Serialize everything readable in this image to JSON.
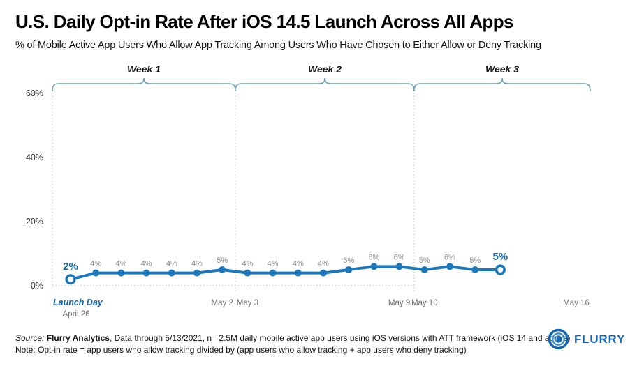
{
  "header": {
    "title": "U.S. Daily Opt-in Rate After iOS 14.5 Launch Across All Apps",
    "subtitle": "% of Mobile Active App Users Who Allow App Tracking Among Users Who Have Chosen to Either Allow or Deny Tracking"
  },
  "chart_data": {
    "type": "line",
    "title": "U.S. Daily Opt-in Rate After iOS 14.5 Launch Across All Apps",
    "values": [
      2,
      4,
      4,
      4,
      4,
      4,
      5,
      4,
      4,
      4,
      4,
      5,
      6,
      6,
      5,
      6,
      5,
      5
    ],
    "point_labels": [
      "2%",
      "4%",
      "4%",
      "4%",
      "4%",
      "4%",
      "5%",
      "4%",
      "4%",
      "4%",
      "4%",
      "5%",
      "6%",
      "6%",
      "5%",
      "6%",
      "5%",
      "5%"
    ],
    "ylim": [
      0,
      60
    ],
    "grid": false,
    "y_ticks": [
      {
        "label": "0%",
        "value": 0
      },
      {
        "label": "20%",
        "value": 20
      },
      {
        "label": "40%",
        "value": 40
      },
      {
        "label": "60%",
        "value": 60
      }
    ],
    "x_ticks": [
      {
        "label": "May 2",
        "day": 6
      },
      {
        "label": "May 3",
        "day": 7
      },
      {
        "label": "May 9",
        "day": 13
      },
      {
        "label": "May 10",
        "day": 14
      },
      {
        "label": "May 16",
        "day": 20
      }
    ],
    "launch": {
      "line1": "Launch Day",
      "line2": "April 26",
      "day": 0
    },
    "weeks": [
      {
        "label": "Week 1"
      },
      {
        "label": "Week 2"
      },
      {
        "label": "Week 3"
      }
    ],
    "colors": {
      "line": "#1b78bd",
      "emphasis": "#1568ab",
      "point_label": "#8c8c8c",
      "axis_text": "#6f6f6f",
      "y_tick_text": "#2f2f2f",
      "week_label": "#1a1a1a",
      "brace": "#6ba3b5",
      "grid_dot": "#c2c7c9"
    }
  },
  "footer": {
    "source_prefix": "Source: ",
    "source_name": "Flurry Analytics",
    "source_rest": ", Data through 5/13/2021, n= 2.5M daily mobile active app users using iOS versions with ATT framework (iOS 14 and above)",
    "note": "Note: Opt-in rate = app users who allow tracking divided by (app users who allow tracking + app users who deny tracking)"
  },
  "logo": {
    "text": "FLURRY",
    "color": "#1566b0"
  }
}
